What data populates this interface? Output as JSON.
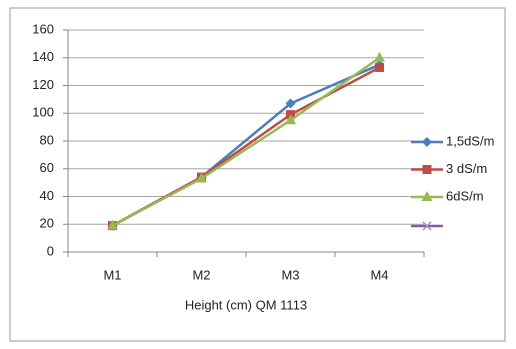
{
  "chart_data": {
    "type": "line",
    "x_label": "Height  (cm) QM 1113",
    "categories": [
      "M1",
      "M2",
      "M3",
      "M4"
    ],
    "series": [
      {
        "name": "1,5dS/m",
        "color": "#4a7ebb",
        "marker": "diamond",
        "values": [
          19,
          54,
          107,
          135
        ]
      },
      {
        "name": "3 dS/m",
        "color": "#be4b48",
        "marker": "square",
        "values": [
          19,
          54,
          99,
          133
        ]
      },
      {
        "name": "6dS/m",
        "color": "#98b954",
        "marker": "triangle",
        "values": [
          19,
          53,
          95,
          140
        ]
      }
    ],
    "ylim": [
      0,
      160
    ],
    "yticks": [
      0,
      20,
      40,
      60,
      80,
      100,
      120,
      140,
      160
    ],
    "grid": true,
    "legend": "right"
  }
}
